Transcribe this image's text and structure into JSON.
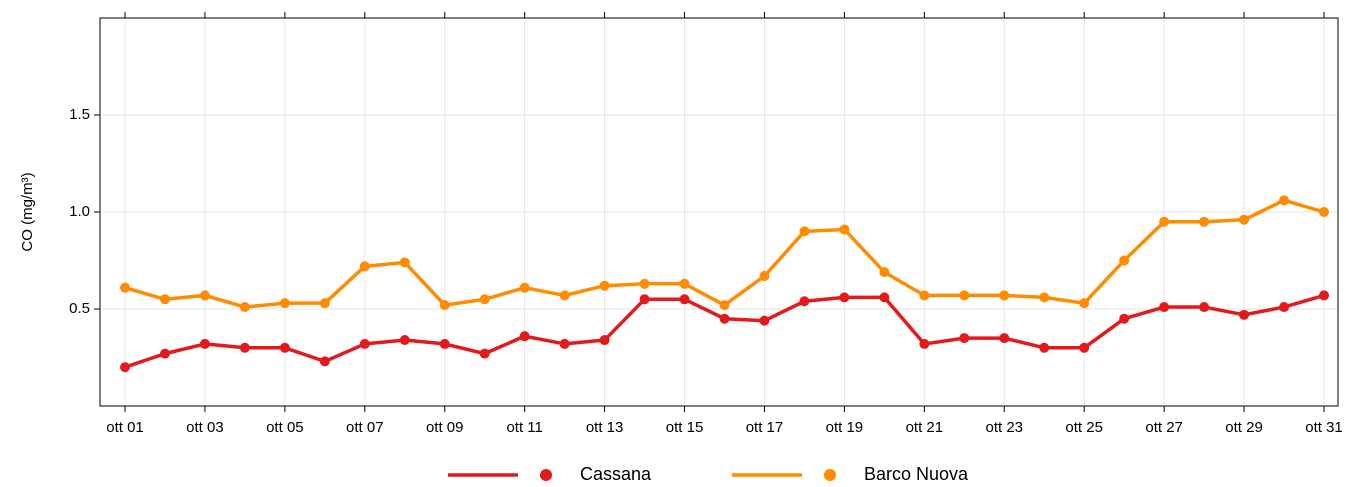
{
  "chart_data": {
    "type": "line",
    "y_label": "CO (mg/m³)",
    "categories": [
      "ott 01",
      null,
      "ott 03",
      null,
      "ott 05",
      null,
      "ott 07",
      null,
      "ott 09",
      null,
      "ott 11",
      null,
      "ott 13",
      null,
      "ott 15",
      null,
      "ott 17",
      null,
      "ott 19",
      null,
      "ott 21",
      null,
      "ott 23",
      null,
      "ott 25",
      null,
      "ott 27",
      null,
      "ott 29",
      null,
      "ott 31"
    ],
    "series": [
      {
        "name": "Cassana",
        "color": "#e31a1c",
        "values": [
          0.2,
          0.27,
          0.32,
          0.3,
          0.3,
          0.23,
          0.32,
          0.34,
          0.32,
          0.27,
          0.36,
          0.32,
          0.34,
          0.55,
          0.55,
          0.45,
          0.44,
          0.54,
          0.56,
          0.56,
          0.32,
          0.35,
          0.35,
          0.3,
          0.3,
          0.45,
          0.51,
          0.51,
          0.47,
          0.51,
          0.57
        ]
      },
      {
        "name": "Barco Nuova",
        "color": "#ff8c00",
        "values": [
          0.61,
          0.55,
          0.57,
          0.51,
          0.53,
          0.53,
          0.72,
          0.74,
          0.52,
          0.55,
          0.61,
          0.57,
          0.62,
          0.63,
          0.63,
          0.52,
          0.67,
          0.9,
          0.91,
          0.69,
          0.57,
          0.57,
          0.57,
          0.56,
          0.53,
          0.75,
          0.95,
          0.95,
          0.96,
          1.06,
          1.0
        ]
      }
    ],
    "ylim": [
      0,
      2
    ],
    "yticks": [
      0.5,
      {
        "value": 1,
        "label": "1.0"
      },
      1.5
    ],
    "grid": true,
    "legend": "bottom"
  }
}
